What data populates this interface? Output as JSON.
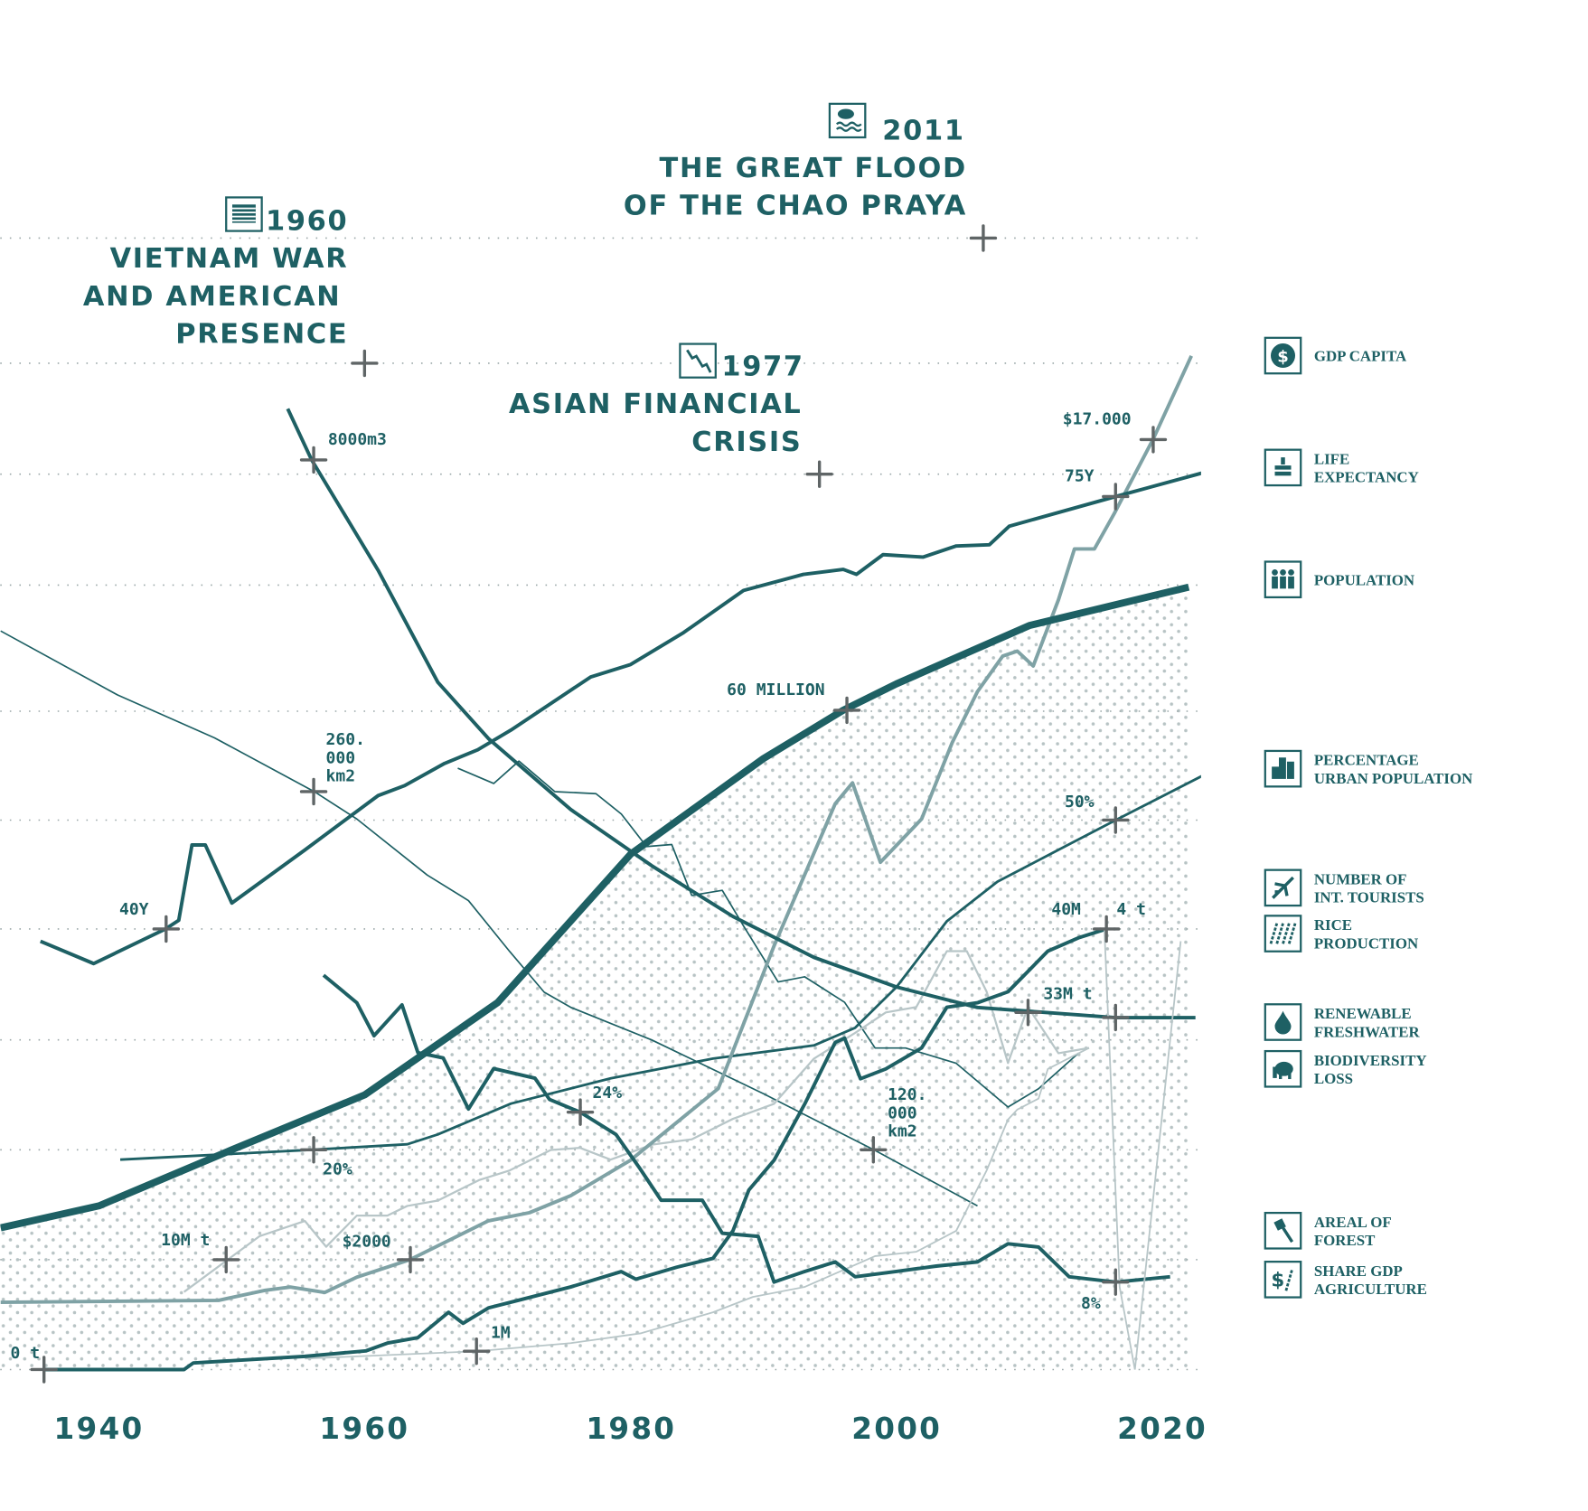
{
  "colors": {
    "primary": "#1e6064",
    "secondary": "#7fa2a5",
    "light": "#b8c6c8",
    "marker": "#5f6566",
    "dots": "#b7c3c4"
  },
  "events": [
    {
      "year_label": "1960",
      "title_lines": [
        "VIETNAM WAR",
        "AND AMERICAN",
        "PRESENCE"
      ],
      "icon": "us-flag-icon"
    },
    {
      "year_label": "1977",
      "title_lines": [
        "ASIAN FINANCIAL",
        "CRISIS"
      ],
      "icon": "falling-chart-icon"
    },
    {
      "year_label": "2011",
      "title_lines": [
        "THE GREAT FLOOD",
        "OF THE CHAO PRAYA"
      ],
      "icon": "flood-icon"
    }
  ],
  "legend": [
    {
      "lines": [
        "GDP CAPITA"
      ],
      "icon": "dollar-icon"
    },
    {
      "lines": [
        "LIFE",
        "EXPECTANCY"
      ],
      "icon": "cake-icon"
    },
    {
      "lines": [
        "POPULATION"
      ],
      "icon": "people-icon"
    },
    {
      "lines": [
        "PERCENTAGE",
        "URBAN POPULATION"
      ],
      "icon": "buildings-icon"
    },
    {
      "lines": [
        "NUMBER OF",
        "INT. TOURISTS"
      ],
      "icon": "airplane-icon"
    },
    {
      "lines": [
        "RICE",
        "PRODUCTION"
      ],
      "icon": "rice-icon"
    },
    {
      "lines": [
        "RENEWABLE",
        "FRESHWATER"
      ],
      "icon": "water-drop-icon"
    },
    {
      "lines": [
        "BIODIVERSITY",
        "LOSS"
      ],
      "icon": "elephant-icon"
    },
    {
      "lines": [
        "AREAL OF",
        "FOREST"
      ],
      "icon": "axe-icon"
    },
    {
      "lines": [
        "SHARE GDP",
        "AGRICULTURE"
      ],
      "icon": "dollar-wheat-icon"
    }
  ],
  "chart_data": {
    "type": "line",
    "xlabel": "",
    "ylabel": "",
    "x_ticks": [
      "1940",
      "1960",
      "1980",
      "2000",
      "2020"
    ],
    "xlim": [
      1932,
      2024
    ],
    "grid": "horizontal dotted",
    "legend_placement": "right",
    "annotations": [
      {
        "text": "8000m3"
      },
      {
        "text": "260.",
        "text2": "000",
        "text3": "km2"
      },
      {
        "text": "40Y"
      },
      {
        "text": "75Y"
      },
      {
        "text": "$17.000"
      },
      {
        "text": "60 MILLION"
      },
      {
        "text": "50%"
      },
      {
        "text": "40M"
      },
      {
        "text": "4 t"
      },
      {
        "text": "33M t"
      },
      {
        "text": "24%"
      },
      {
        "text": "120.",
        "text2": "000",
        "text3": "km2"
      },
      {
        "text": "20%"
      },
      {
        "text": "10M t"
      },
      {
        "text": "$2000"
      },
      {
        "text": "8%"
      },
      {
        "text": "1M"
      },
      {
        "text": "0 t"
      }
    ],
    "series": [
      {
        "key": "life",
        "unit": "years",
        "points": [
          [
            1935.6,
            39
          ],
          [
            1939.6,
            37.2
          ],
          [
            1945,
            40
          ],
          [
            1946,
            40.7
          ],
          [
            1947,
            46.8
          ],
          [
            1948,
            46.8
          ],
          [
            1950,
            42.1
          ],
          [
            1955.5,
            46.4
          ],
          [
            1961,
            50.8
          ],
          [
            1963,
            51.6
          ],
          [
            1966,
            53.4
          ],
          [
            1968.5,
            54.5
          ],
          [
            1971,
            56.1
          ],
          [
            1977,
            60.4
          ],
          [
            1980,
            61.4
          ],
          [
            1984,
            64
          ],
          [
            1988.5,
            67.4
          ],
          [
            1993,
            68.7
          ],
          [
            1996,
            69.1
          ],
          [
            1997,
            68.7
          ],
          [
            1999,
            70.3
          ],
          [
            2002,
            70.1
          ],
          [
            2004.5,
            71
          ],
          [
            2007,
            71.1
          ],
          [
            2008.5,
            72.6
          ],
          [
            2016.5,
            75
          ],
          [
            2023,
            76.9
          ]
        ]
      },
      {
        "key": "population",
        "unit": "million",
        "points": [
          [
            1932.6,
            12.9
          ],
          [
            1940,
            14.9
          ],
          [
            1950,
            20
          ],
          [
            1960,
            25
          ],
          [
            1970,
            33.4
          ],
          [
            1980,
            46.9
          ],
          [
            1990,
            55.6
          ],
          [
            1996,
            60
          ],
          [
            2000,
            62.4
          ],
          [
            2010,
            67.7
          ],
          [
            2022,
            71.2
          ]
        ]
      },
      {
        "key": "gdp",
        "unit": "$",
        "points": [
          [
            1932.6,
            1220
          ],
          [
            1949,
            1255
          ],
          [
            1952.5,
            1440
          ],
          [
            1954.4,
            1500
          ],
          [
            1957,
            1400
          ],
          [
            1959.4,
            1680
          ],
          [
            1963.4,
            2000
          ],
          [
            1969.3,
            2710
          ],
          [
            1972.4,
            2860
          ],
          [
            1975.5,
            3170
          ],
          [
            1980,
            3820
          ],
          [
            1986.6,
            5130
          ],
          [
            1990.8,
            7740
          ],
          [
            1995.4,
            10340
          ],
          [
            1996.7,
            10720
          ],
          [
            1998.8,
            9270
          ],
          [
            2001.9,
            10060
          ],
          [
            2004.2,
            11460
          ],
          [
            2006.1,
            12390
          ],
          [
            2008,
            13040
          ],
          [
            2009.1,
            13130
          ],
          [
            2010.3,
            12860
          ],
          [
            2012.2,
            14070
          ],
          [
            2013.4,
            15000
          ],
          [
            2014.9,
            15000
          ],
          [
            2016.4,
            15650
          ],
          [
            2019.3,
            17000
          ],
          [
            2022.2,
            18530
          ]
        ]
      },
      {
        "key": "freshwater",
        "unit": "m3",
        "points": [
          [
            1954.2,
            8450
          ],
          [
            1956,
            8000
          ],
          [
            1961,
            7030
          ],
          [
            1965.5,
            6045
          ],
          [
            1969.3,
            5550
          ],
          [
            1975.5,
            4925
          ],
          [
            1981.6,
            4430
          ],
          [
            1987.7,
            3985
          ],
          [
            1993.8,
            3625
          ],
          [
            2000,
            3365
          ],
          [
            2006.1,
            3185
          ],
          [
            2016.5,
            3095
          ],
          [
            2022.5,
            3095
          ]
        ]
      },
      {
        "key": "urban",
        "unit": "%",
        "points": [
          [
            1941.6,
            19.1
          ],
          [
            1956,
            20
          ],
          [
            1963.2,
            20.5
          ],
          [
            1965.5,
            21.4
          ],
          [
            1971,
            24.2
          ],
          [
            1978.5,
            26.5
          ],
          [
            1986.2,
            28.3
          ],
          [
            1993.8,
            29.5
          ],
          [
            1996.9,
            31.1
          ],
          [
            2000,
            34.8
          ],
          [
            2003.8,
            40.8
          ],
          [
            2007.6,
            44.4
          ],
          [
            2012.2,
            47.3
          ],
          [
            2016.5,
            50
          ],
          [
            2023.3,
            54.2
          ]
        ]
      },
      {
        "key": "forest",
        "unit": "thousand km2",
        "points": [
          [
            1932.6,
            322.8
          ],
          [
            1941.4,
            297.8
          ],
          [
            1948.7,
            281
          ],
          [
            1956.2,
            260
          ],
          [
            1959.4,
            249.3
          ],
          [
            1964.7,
            227.4
          ],
          [
            1967.8,
            217.4
          ],
          [
            1970.9,
            197.5
          ],
          [
            1973.5,
            181.6
          ],
          [
            1975.5,
            175.7
          ],
          [
            1981.6,
            162.9
          ],
          [
            1990,
            141.9
          ],
          [
            1998.3,
            120
          ],
          [
            2006.1,
            98.1
          ]
        ]
      },
      {
        "key": "agriculture",
        "unit": "%",
        "points": [
          [
            1956.9,
            36.9
          ],
          [
            1959.4,
            34.3
          ],
          [
            1960.7,
            31.2
          ],
          [
            1962.8,
            34.1
          ],
          [
            1964,
            29.6
          ],
          [
            1965.9,
            29.1
          ],
          [
            1967.8,
            24.3
          ],
          [
            1969.7,
            28.1
          ],
          [
            1972.8,
            27.2
          ],
          [
            1973.9,
            25.2
          ],
          [
            1976.2,
            24
          ],
          [
            1978.9,
            21.9
          ],
          [
            1980.7,
            18.7
          ],
          [
            1982.3,
            15.7
          ],
          [
            1985.4,
            15.7
          ],
          [
            1986.9,
            12.6
          ],
          [
            1989.6,
            12.3
          ],
          [
            1990.8,
            8
          ],
          [
            1993.1,
            9
          ],
          [
            1995.4,
            9.9
          ],
          [
            1996.9,
            8.5
          ],
          [
            2000,
            9
          ],
          [
            2003,
            9.5
          ],
          [
            2006.1,
            9.9
          ],
          [
            2008.4,
            11.6
          ],
          [
            2010.7,
            11.3
          ],
          [
            2013,
            8.5
          ],
          [
            2016.5,
            8
          ],
          [
            2020.6,
            8.5
          ]
        ]
      },
      {
        "key": "tonnes",
        "unit": "t",
        "points": [
          [
            1935.9,
            0
          ],
          [
            1946.4,
            0
          ],
          [
            1947.1,
            0.06
          ],
          [
            1955.5,
            0.12
          ],
          [
            1960.1,
            0.17
          ],
          [
            1961.7,
            0.24
          ],
          [
            1964,
            0.29
          ],
          [
            1966.3,
            0.52
          ],
          [
            1967.4,
            0.42
          ],
          [
            1969.3,
            0.56
          ],
          [
            1971.6,
            0.63
          ],
          [
            1975.5,
            0.75
          ],
          [
            1979.3,
            0.89
          ],
          [
            1980.4,
            0.82
          ],
          [
            1983.5,
            0.93
          ],
          [
            1986.2,
            1.01
          ],
          [
            1987.7,
            1.26
          ],
          [
            1988.9,
            1.63
          ],
          [
            1990.8,
            1.9
          ],
          [
            1993.1,
            2.41
          ],
          [
            1995.4,
            2.97
          ],
          [
            1996.1,
            3.01
          ],
          [
            1997.3,
            2.64
          ],
          [
            1999.2,
            2.73
          ],
          [
            2001.9,
            2.92
          ],
          [
            2003.8,
            3.29
          ],
          [
            2006.1,
            3.33
          ],
          [
            2008.4,
            3.43
          ],
          [
            2011.4,
            3.8
          ],
          [
            2013.7,
            3.92
          ],
          [
            2015.8,
            4
          ]
        ]
      },
      {
        "key": "tourists",
        "unit": "million",
        "points": [
          [
            1955.5,
            1
          ],
          [
            1968.4,
            1.66
          ],
          [
            1975.5,
            2.4
          ],
          [
            1980.8,
            3.3
          ],
          [
            1986.2,
            5.2
          ],
          [
            1989.2,
            6.6
          ],
          [
            1993.1,
            7.5
          ],
          [
            1998.4,
            10.3
          ],
          [
            2001.5,
            10.7
          ],
          [
            2004.5,
            12.6
          ],
          [
            2006.8,
            18.1
          ],
          [
            2008.4,
            22.7
          ],
          [
            2009.1,
            23.6
          ],
          [
            2010.7,
            24.6
          ],
          [
            2011.4,
            27.3
          ],
          [
            2014.5,
            29.2
          ]
        ]
      },
      {
        "key": "rice",
        "unit": "million t",
        "points": [
          [
            1946.4,
            7
          ],
          [
            1952.1,
            12.2
          ],
          [
            1955.5,
            13.6
          ],
          [
            1957.1,
            11.2
          ],
          [
            1959.4,
            14.1
          ],
          [
            1961.7,
            14.1
          ],
          [
            1963.2,
            15
          ],
          [
            1965.5,
            15.5
          ],
          [
            1968.6,
            17.4
          ],
          [
            1970.9,
            18.3
          ],
          [
            1974,
            20.2
          ],
          [
            1976.2,
            20.4
          ],
          [
            1978.5,
            19.3
          ],
          [
            1981.6,
            20.7
          ],
          [
            1984.6,
            21.2
          ],
          [
            1987.7,
            23.1
          ],
          [
            1990.8,
            24.5
          ],
          [
            1993.8,
            28.7
          ],
          [
            1996.9,
            31.1
          ],
          [
            1999.2,
            33
          ],
          [
            2001.5,
            33.5
          ],
          [
            2003.8,
            38.7
          ],
          [
            2005.3,
            38.7
          ],
          [
            2006.8,
            34.9
          ],
          [
            2008.4,
            28.3
          ],
          [
            2009.9,
            33.5
          ],
          [
            2012.2,
            29.2
          ],
          [
            2014.5,
            29.7
          ]
        ]
      },
      {
        "key": "biodiversity",
        "unit": "index",
        "points": [
          [
            1967,
            59.1
          ],
          [
            1969.7,
            57.6
          ],
          [
            1971.6,
            59.8
          ],
          [
            1974.3,
            56.8
          ],
          [
            1977.4,
            56.6
          ],
          [
            1979.3,
            54.6
          ],
          [
            1981.2,
            51.4
          ],
          [
            1983.1,
            51.6
          ],
          [
            1984.6,
            46.6
          ],
          [
            1986.9,
            47.1
          ],
          [
            1988.5,
            43.6
          ],
          [
            1991.1,
            38.1
          ],
          [
            1993.1,
            38.6
          ],
          [
            1996.1,
            36.1
          ],
          [
            1998.4,
            31.6
          ],
          [
            2000.7,
            31.6
          ],
          [
            2004.5,
            30.1
          ],
          [
            2008.4,
            25.8
          ],
          [
            2010.7,
            27.6
          ],
          [
            2013.7,
            31.1
          ]
        ]
      }
    ]
  }
}
